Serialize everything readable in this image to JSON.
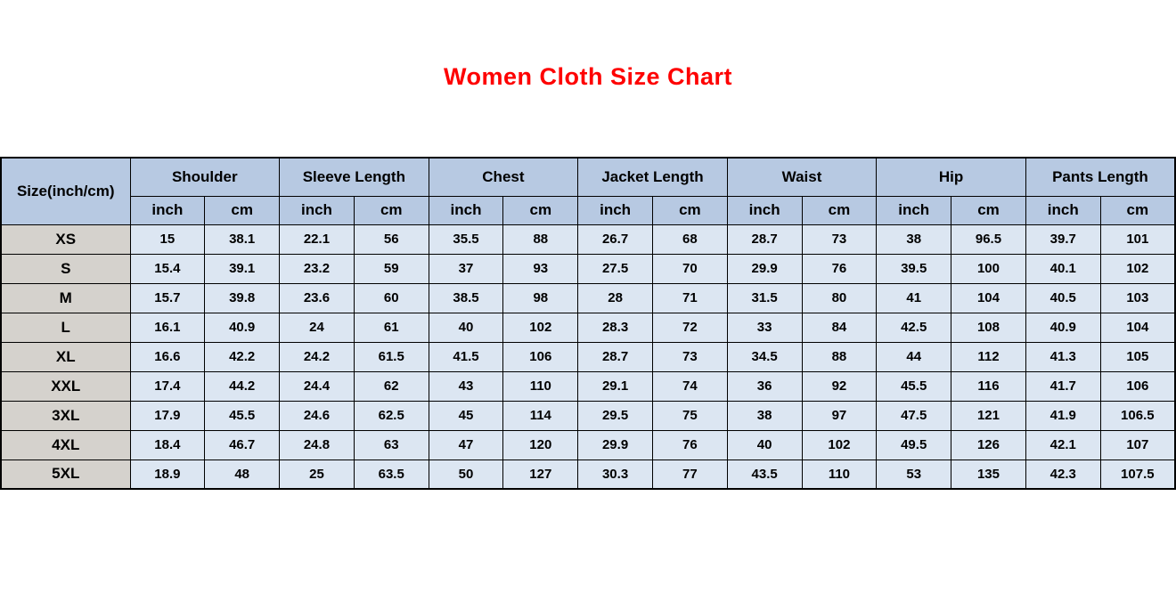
{
  "colors": {
    "title_red": "#fe0000",
    "header_bg": "#b7c9e2",
    "size_column_bg": "#d5d2cd",
    "cell_bg": "#dce6f2",
    "border": "#000000",
    "page_bg": "#ffffff"
  },
  "chart_data": {
    "type": "table",
    "title": "Women Cloth Size Chart",
    "corner_header": "Size(inch/cm)",
    "column_groups": [
      "Shoulder",
      "Sleeve Length",
      "Chest",
      "Jacket Length",
      "Waist",
      "Hip",
      "Pants Length"
    ],
    "unit_headers": [
      "inch",
      "cm"
    ],
    "rows": [
      {
        "size": "XS",
        "values": [
          "15",
          "38.1",
          "22.1",
          "56",
          "35.5",
          "88",
          "26.7",
          "68",
          "28.7",
          "73",
          "38",
          "96.5",
          "39.7",
          "101"
        ]
      },
      {
        "size": "S",
        "values": [
          "15.4",
          "39.1",
          "23.2",
          "59",
          "37",
          "93",
          "27.5",
          "70",
          "29.9",
          "76",
          "39.5",
          "100",
          "40.1",
          "102"
        ]
      },
      {
        "size": "M",
        "values": [
          "15.7",
          "39.8",
          "23.6",
          "60",
          "38.5",
          "98",
          "28",
          "71",
          "31.5",
          "80",
          "41",
          "104",
          "40.5",
          "103"
        ]
      },
      {
        "size": "L",
        "values": [
          "16.1",
          "40.9",
          "24",
          "61",
          "40",
          "102",
          "28.3",
          "72",
          "33",
          "84",
          "42.5",
          "108",
          "40.9",
          "104"
        ]
      },
      {
        "size": "XL",
        "values": [
          "16.6",
          "42.2",
          "24.2",
          "61.5",
          "41.5",
          "106",
          "28.7",
          "73",
          "34.5",
          "88",
          "44",
          "112",
          "41.3",
          "105"
        ]
      },
      {
        "size": "XXL",
        "values": [
          "17.4",
          "44.2",
          "24.4",
          "62",
          "43",
          "110",
          "29.1",
          "74",
          "36",
          "92",
          "45.5",
          "116",
          "41.7",
          "106"
        ]
      },
      {
        "size": "3XL",
        "values": [
          "17.9",
          "45.5",
          "24.6",
          "62.5",
          "45",
          "114",
          "29.5",
          "75",
          "38",
          "97",
          "47.5",
          "121",
          "41.9",
          "106.5"
        ]
      },
      {
        "size": "4XL",
        "values": [
          "18.4",
          "46.7",
          "24.8",
          "63",
          "47",
          "120",
          "29.9",
          "76",
          "40",
          "102",
          "49.5",
          "126",
          "42.1",
          "107"
        ]
      },
      {
        "size": "5XL",
        "values": [
          "18.9",
          "48",
          "25",
          "63.5",
          "50",
          "127",
          "30.3",
          "77",
          "43.5",
          "110",
          "53",
          "135",
          "42.3",
          "107.5"
        ]
      }
    ]
  }
}
